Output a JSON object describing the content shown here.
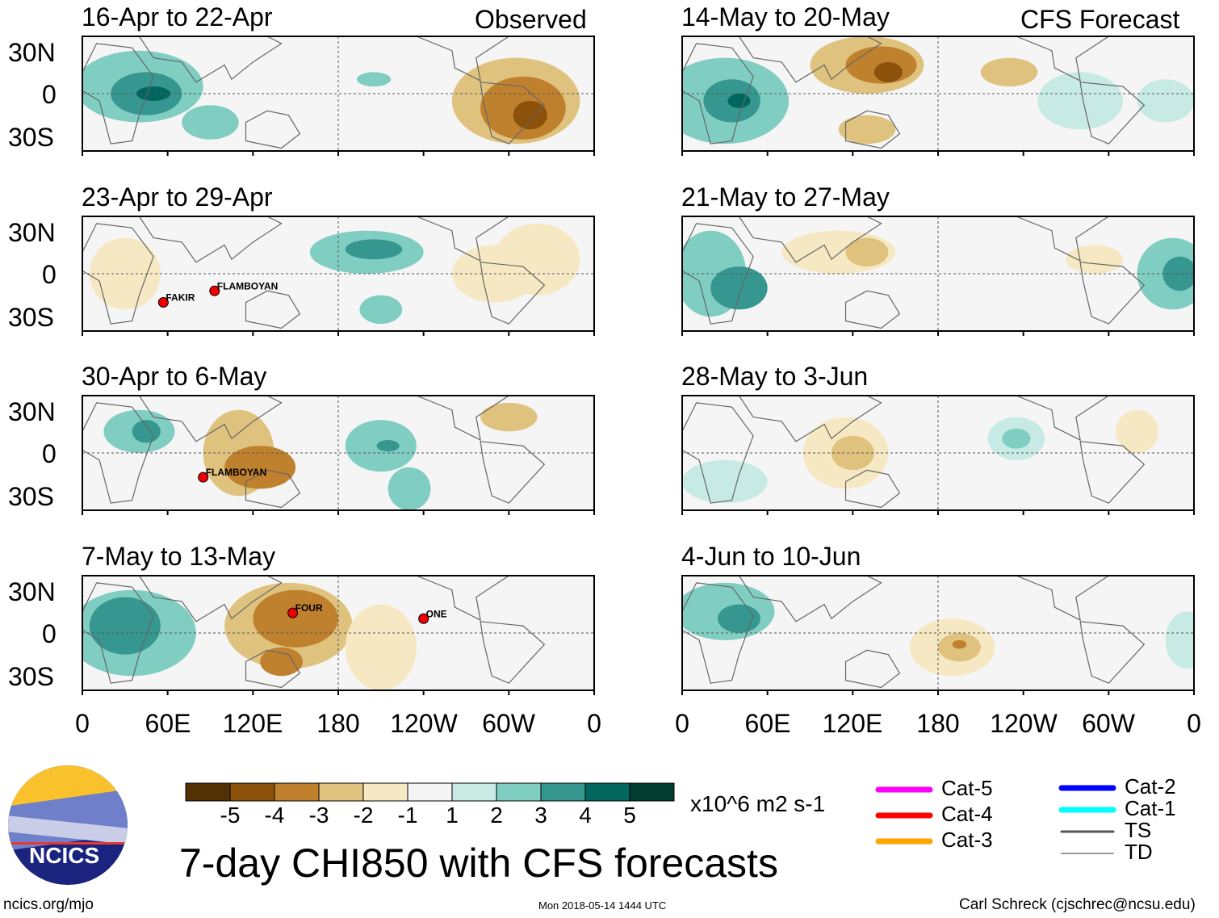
{
  "header": {
    "left_label": "Observed",
    "right_label": "CFS Forecast"
  },
  "panels": [
    {
      "title": "16-Apr to 22-Apr",
      "column": "observed",
      "storms": []
    },
    {
      "title": "23-Apr to 29-Apr",
      "column": "observed",
      "storms": [
        {
          "name": "FAKIR",
          "lon": 57,
          "lat": -20
        },
        {
          "name": "FLAMBOYAN",
          "lon": 93,
          "lat": -12
        }
      ]
    },
    {
      "title": "30-Apr to 6-May",
      "column": "observed",
      "storms": [
        {
          "name": "FLAMBOYAN",
          "lon": 85,
          "lat": -17
        }
      ]
    },
    {
      "title": "7-May to 13-May",
      "column": "observed",
      "storms": [
        {
          "name": "FOUR",
          "lon": 148,
          "lat": 14
        },
        {
          "name": "ONE",
          "lon": 240,
          "lat": 10
        }
      ]
    },
    {
      "title": "14-May to 20-May",
      "column": "forecast",
      "storms": []
    },
    {
      "title": "21-May to 27-May",
      "column": "forecast",
      "storms": []
    },
    {
      "title": "28-May to 3-Jun",
      "column": "forecast",
      "storms": []
    },
    {
      "title": "4-Jun to 10-Jun",
      "column": "forecast",
      "storms": []
    }
  ],
  "lat_labels": [
    "30N",
    "0",
    "30S"
  ],
  "lon_labels": [
    "0",
    "60E",
    "120E",
    "180",
    "120W",
    "60W",
    "0"
  ],
  "colorbar": {
    "ticks": [
      "-5",
      "-4",
      "-3",
      "-2",
      "-1",
      "1",
      "2",
      "3",
      "4",
      "5"
    ],
    "colors": [
      "#543005",
      "#8c510a",
      "#bf812d",
      "#dfc27d",
      "#f6e8c3",
      "#f5f5f5",
      "#c7eae5",
      "#80cdc1",
      "#35978f",
      "#01665e",
      "#003c30"
    ],
    "units": "x10^6 m2 s-1"
  },
  "track_legend": [
    {
      "label": "Cat-5",
      "color": "#ff00ff"
    },
    {
      "label": "Cat-4",
      "color": "#ff0000"
    },
    {
      "label": "Cat-3",
      "color": "#ffa500"
    },
    {
      "label": "Cat-2",
      "color": "#0000ff"
    },
    {
      "label": "Cat-1",
      "color": "#00ffff"
    },
    {
      "label": "TS",
      "color": "#555555"
    },
    {
      "label": "TD",
      "color": "#999999"
    }
  ],
  "main_title": "7-day CHI850 with CFS forecasts",
  "logo_text": "NCICS",
  "footer": {
    "left": "ncics.org/mjo",
    "center": "Mon 2018-05-14 1444 UTC",
    "right": "Carl Schreck (cjschrec@ncsu.edu)"
  }
}
